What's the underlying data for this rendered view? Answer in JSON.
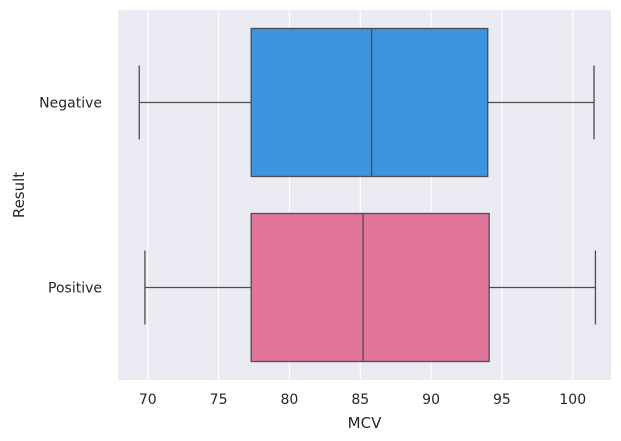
{
  "chart_data": {
    "type": "boxplot",
    "orientation": "horizontal",
    "title": "",
    "xlabel": "MCV",
    "ylabel": "Result",
    "xlim": [
      67.9,
      102.7
    ],
    "xticks": [
      70,
      75,
      80,
      85,
      90,
      95,
      100
    ],
    "xtick_labels": [
      "70",
      "75",
      "80",
      "85",
      "90",
      "95",
      "100"
    ],
    "grid": true,
    "legend": "none",
    "categories": [
      "Negative",
      "Positive"
    ],
    "boxes": [
      {
        "category": "Negative",
        "whisker_low": 69.4,
        "q1": 77.3,
        "median": 85.8,
        "q3": 94.0,
        "whisker_high": 101.5,
        "color": "#3d94de"
      },
      {
        "category": "Positive",
        "whisker_low": 69.8,
        "q1": 77.3,
        "median": 85.2,
        "q3": 94.1,
        "whisker_high": 101.6,
        "color": "#e07599"
      }
    ],
    "colors": {
      "background": "#eaeaf2",
      "grid": "#ffffff",
      "line": "#4d4d4d"
    }
  }
}
